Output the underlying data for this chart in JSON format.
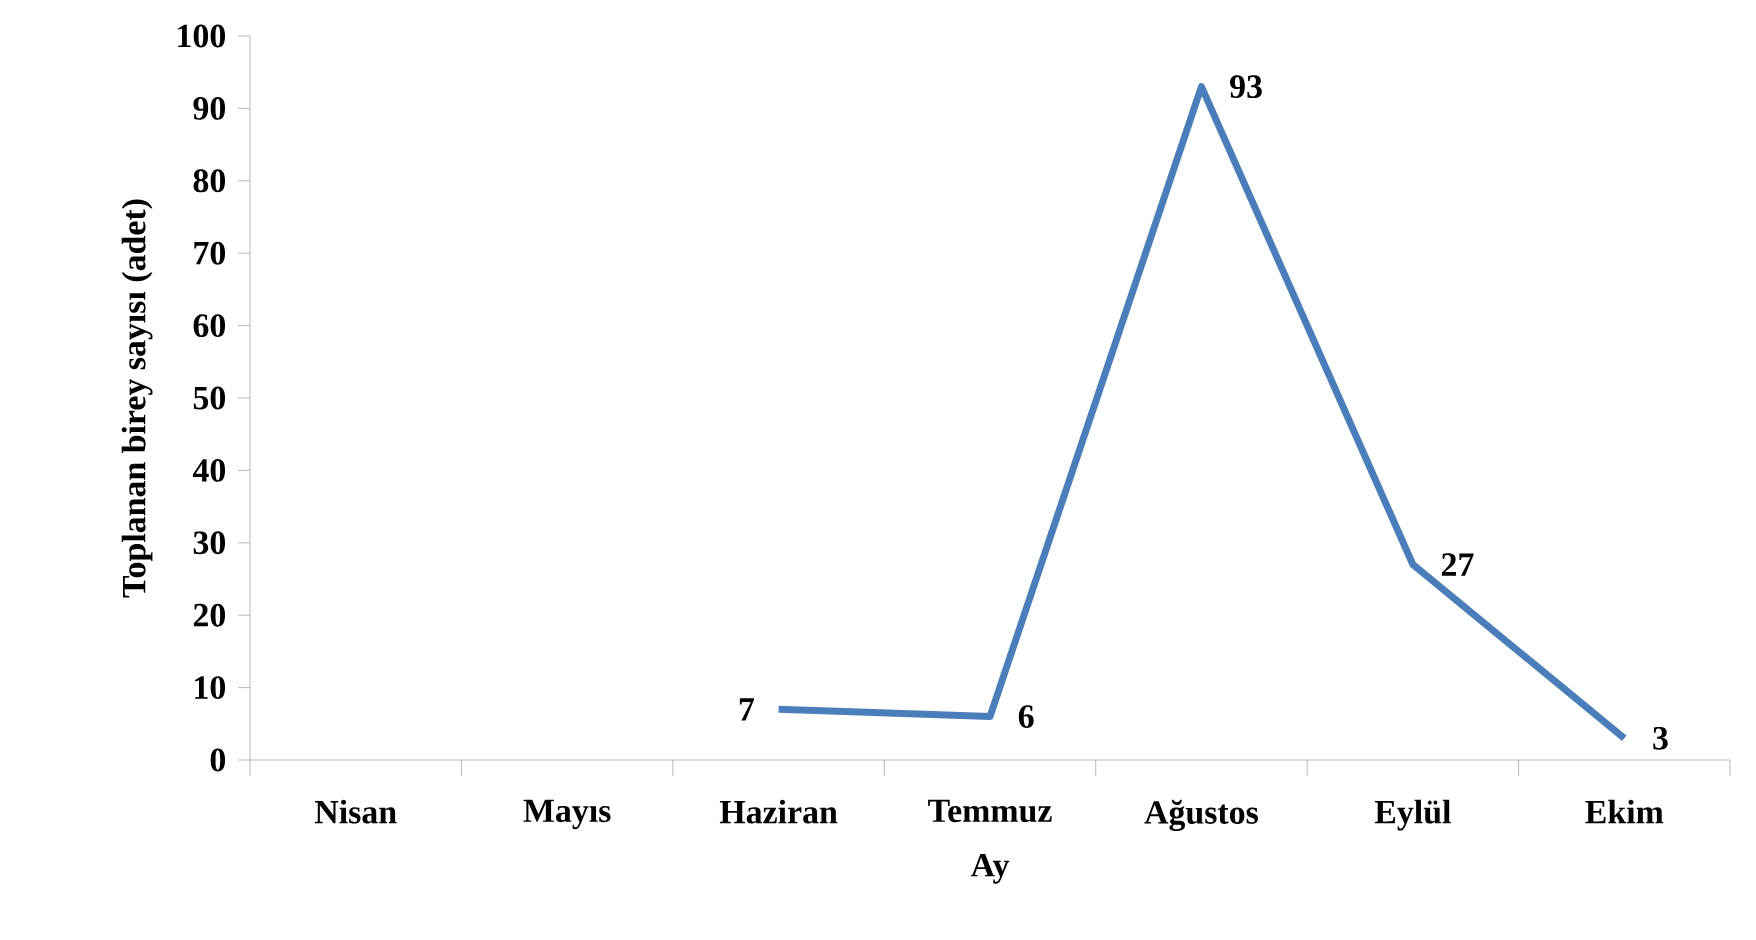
{
  "chart_data": {
    "type": "line",
    "xlabel": "Ay",
    "ylabel": "Toplanan birey sayısı (adet)",
    "categories": [
      "Nisan",
      "Mayıs",
      "Haziran",
      "Temmuz",
      "Ağustos",
      "Eylül",
      "Ekim"
    ],
    "series": [
      {
        "color": "#4a7ebb",
        "values": [
          null,
          null,
          7,
          6,
          93,
          27,
          3
        ]
      }
    ],
    "ylim": [
      0,
      100
    ],
    "yticks": [
      0,
      10,
      20,
      30,
      40,
      50,
      60,
      70,
      80,
      90,
      100
    ],
    "data_labels": true,
    "grid": false,
    "marker": "none",
    "line_style": "solid"
  }
}
